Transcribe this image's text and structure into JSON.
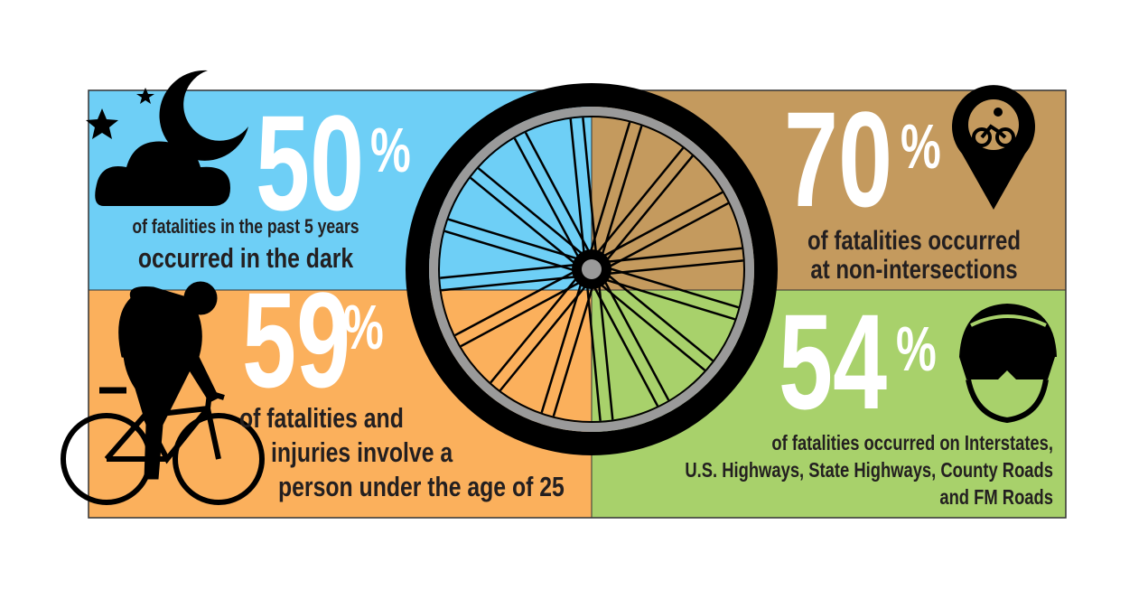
{
  "panels": [
    {
      "stat": "50",
      "symbol": "%",
      "lines": [
        "of fatalities in the past 5 years",
        "occurred in the dark"
      ]
    },
    {
      "stat": "70",
      "symbol": "%",
      "lines": [
        "of fatalities occurred",
        "at non-intersections"
      ]
    },
    {
      "stat": "59",
      "symbol": "%",
      "lines": [
        "of fatalities and",
        "injuries involve a",
        "person under the age of 25"
      ]
    },
    {
      "stat": "54",
      "symbol": "%",
      "lines": [
        "of fatalities occurred on Interstates,",
        "U.S. Highways, State Highways, County Roads",
        "and FM Roads"
      ]
    }
  ]
}
